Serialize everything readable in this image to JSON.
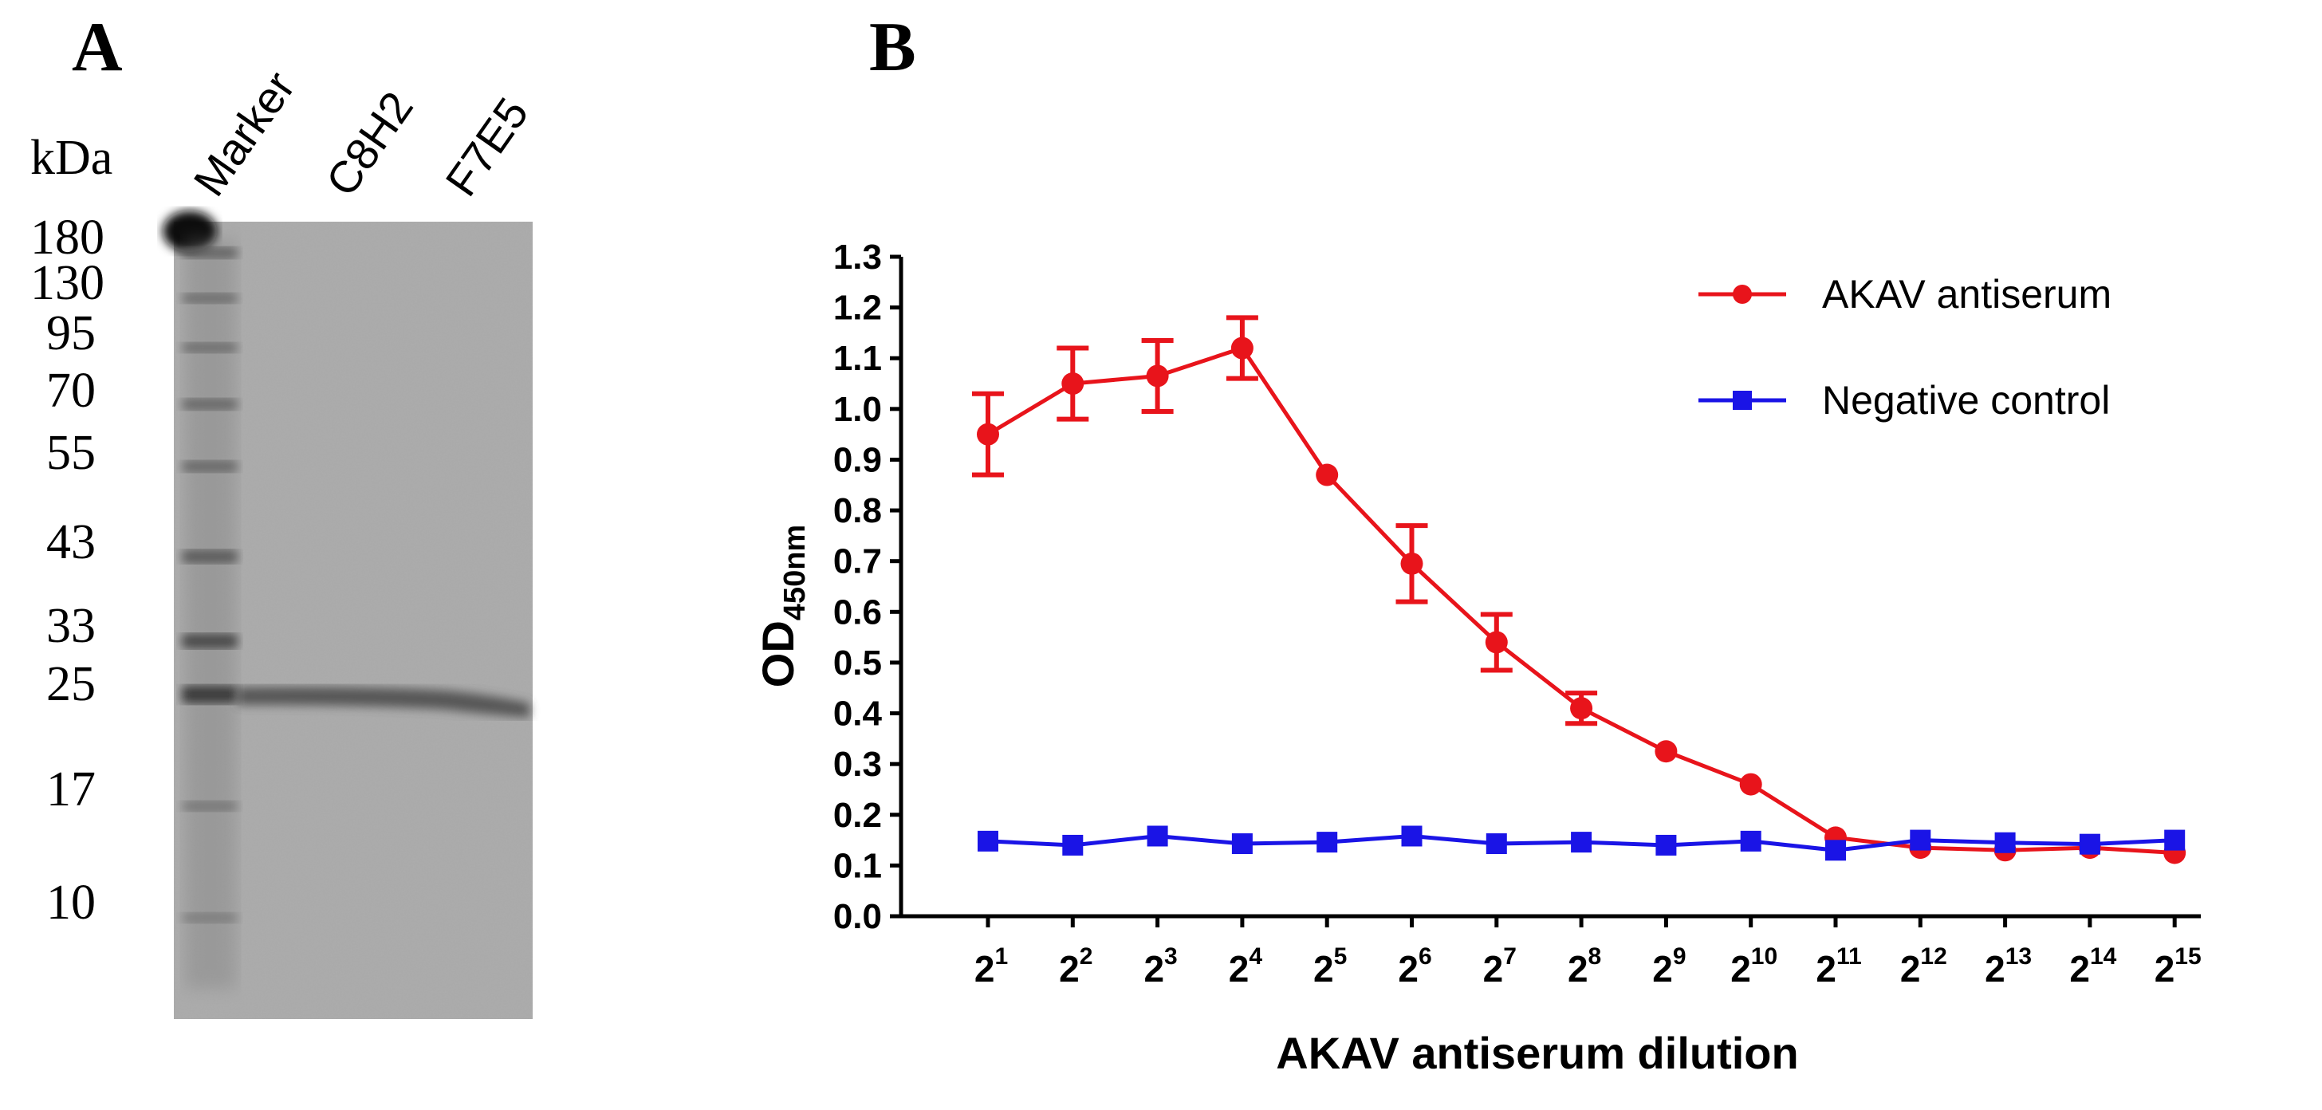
{
  "panel_a": {
    "letter": "A",
    "unit_label": "kDa",
    "lanes": [
      "Marker",
      "C8H2",
      "F7E5"
    ],
    "marker_sizes": [
      "180",
      "130",
      "95",
      "70",
      "55",
      "43",
      "33",
      "25",
      "17",
      "10"
    ],
    "colors": {
      "membrane": "#a9a9a9",
      "band": "#4a4a4a"
    }
  },
  "panel_b": {
    "letter": "B"
  },
  "chart_data": {
    "type": "line",
    "xlabel": "AKAV antiserum dilution",
    "ylabel": "OD",
    "ylabel_subscript": "450nm",
    "ylim": [
      0.0,
      1.3
    ],
    "ytick_step": 0.1,
    "yticks": [
      "0.0",
      "0.1",
      "0.2",
      "0.3",
      "0.4",
      "0.5",
      "0.6",
      "0.7",
      "0.8",
      "0.9",
      "1.0",
      "1.1",
      "1.2",
      "1.3"
    ],
    "x_base": "2",
    "x_exponents": [
      "1",
      "2",
      "3",
      "4",
      "5",
      "6",
      "7",
      "8",
      "9",
      "10",
      "11",
      "12",
      "13",
      "14",
      "15"
    ],
    "legend_position": "top-right",
    "series": [
      {
        "name": "AKAV antiserum",
        "color": "#e8141b",
        "marker": "circle",
        "values": [
          0.95,
          1.05,
          1.065,
          1.12,
          0.87,
          0.695,
          0.54,
          0.41,
          0.325,
          0.26,
          0.155,
          0.135,
          0.13,
          0.135,
          0.125
        ],
        "errors": [
          0.08,
          0.07,
          0.07,
          0.06,
          0.0,
          0.075,
          0.055,
          0.03,
          0.0,
          0.0,
          0.0,
          0.0,
          0.0,
          0.0,
          0.0
        ]
      },
      {
        "name": "Negative control",
        "color": "#1a14e6",
        "marker": "square",
        "values": [
          0.148,
          0.14,
          0.158,
          0.143,
          0.146,
          0.158,
          0.143,
          0.146,
          0.14,
          0.148,
          0.13,
          0.15,
          0.145,
          0.142,
          0.15
        ],
        "errors": [
          0,
          0,
          0,
          0,
          0,
          0,
          0,
          0,
          0,
          0,
          0,
          0,
          0,
          0,
          0
        ]
      }
    ]
  }
}
